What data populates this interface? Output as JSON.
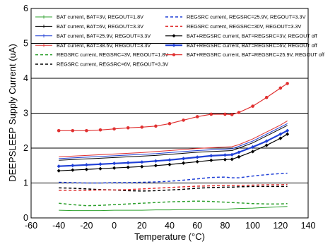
{
  "chart_data": {
    "type": "line",
    "title": "",
    "xlabel": "Temperature (°C)",
    "ylabel": "DEEPSLEEP Supply Current (uA)",
    "xlim": [
      -60,
      140
    ],
    "ylim": [
      0,
      6
    ],
    "x_ticks": [
      "-60",
      "-40",
      "-20",
      "0",
      "20",
      "40",
      "60",
      "80",
      "100",
      "120",
      "140"
    ],
    "y_ticks": [
      "0",
      "1",
      "2",
      "3",
      "4",
      "5",
      "6"
    ],
    "grid": true,
    "legend_position": "top",
    "x": [
      -40,
      -30,
      -20,
      -10,
      0,
      10,
      20,
      30,
      40,
      50,
      60,
      70,
      80,
      85,
      90,
      100,
      110,
      120,
      125
    ],
    "series": [
      {
        "name": "BAT current, BAT=3V, REGOUT=1.8V",
        "color": "#2ca02c",
        "style": "solid",
        "width": 1,
        "marker": "none",
        "values": [
          0.22,
          0.21,
          0.21,
          0.21,
          0.22,
          0.22,
          0.22,
          0.23,
          0.23,
          0.24,
          0.24,
          0.25,
          0.25,
          0.26,
          0.27,
          0.28,
          0.3,
          0.32,
          0.33
        ]
      },
      {
        "name": "BAT current, BAT=6V, REGOUT=3.3V",
        "color": "#000000",
        "style": "solid",
        "width": 1,
        "marker": "none",
        "values": [
          1.65,
          1.67,
          1.69,
          1.71,
          1.73,
          1.75,
          1.77,
          1.79,
          1.82,
          1.85,
          1.88,
          1.9,
          1.92,
          1.93,
          2.0,
          2.15,
          2.35,
          2.55,
          2.65
        ]
      },
      {
        "name": "BAT current, BAT=25.9V, REGOUT=3.3V",
        "color": "#1f3fd6",
        "style": "solid",
        "width": 1,
        "marker": "none",
        "values": [
          1.7,
          1.72,
          1.74,
          1.76,
          1.78,
          1.8,
          1.82,
          1.84,
          1.87,
          1.9,
          1.93,
          1.95,
          1.97,
          1.98,
          2.05,
          2.2,
          2.4,
          2.6,
          2.7
        ]
      },
      {
        "name": "BAT current, BAT=38.5V, REGOUT=3.3V",
        "color": "#e03030",
        "style": "solid",
        "width": 1,
        "marker": "none",
        "values": [
          1.75,
          1.77,
          1.79,
          1.81,
          1.83,
          1.85,
          1.87,
          1.9,
          1.93,
          1.96,
          1.99,
          2.01,
          2.03,
          2.04,
          2.1,
          2.26,
          2.46,
          2.66,
          2.78
        ]
      },
      {
        "name": "REGSRC current, REGSRC=3V, REGOUT=1.8V",
        "color": "#2ca02c",
        "style": "dashed",
        "width": 1.5,
        "marker": "none",
        "values": [
          0.42,
          0.38,
          0.35,
          0.36,
          0.38,
          0.4,
          0.42,
          0.44,
          0.46,
          0.47,
          0.48,
          0.47,
          0.45,
          0.44,
          0.43,
          0.41,
          0.4,
          0.4,
          0.41
        ]
      },
      {
        "name": "REGSRC current, REGSRC=6V, REGOUT=3.3V",
        "color": "#000000",
        "style": "dashed",
        "width": 1.5,
        "marker": "none",
        "values": [
          0.86,
          0.85,
          0.83,
          0.81,
          0.8,
          0.78,
          0.77,
          0.78,
          0.8,
          0.82,
          0.85,
          0.87,
          0.88,
          0.88,
          0.89,
          0.9,
          0.9,
          0.9,
          0.9
        ]
      },
      {
        "name": "REGSRC current, REGSRC=25.9V, REGOUT=3.3V",
        "color": "#1f3fd6",
        "style": "dashed",
        "width": 1.5,
        "marker": "none",
        "values": [
          1.02,
          1.01,
          1.0,
          1.0,
          1.01,
          1.01,
          1.02,
          1.03,
          1.05,
          1.08,
          1.12,
          1.16,
          1.17,
          1.15,
          1.15,
          1.2,
          1.24,
          1.27,
          1.28
        ]
      },
      {
        "name": "REGSRC current, REGSRC=30V, REGOUT=3.3V",
        "color": "#e03030",
        "style": "dashed",
        "width": 1.5,
        "marker": "none",
        "values": [
          0.79,
          0.79,
          0.79,
          0.8,
          0.8,
          0.81,
          0.83,
          0.85,
          0.87,
          0.89,
          0.91,
          0.92,
          0.93,
          0.93,
          0.93,
          0.94,
          0.95,
          0.95,
          0.96
        ]
      },
      {
        "name": "BAT+REGSRC current, BAT=REGSRC=3V, REGOUT off",
        "color": "#000000",
        "style": "solid",
        "width": 1.2,
        "marker": "diamond",
        "values": [
          1.35,
          1.37,
          1.39,
          1.41,
          1.43,
          1.45,
          1.47,
          1.5,
          1.53,
          1.57,
          1.61,
          1.65,
          1.67,
          1.68,
          1.75,
          1.9,
          2.08,
          2.28,
          2.4
        ]
      },
      {
        "name": "BAT+REGSRC current, BAT=REGSRC=6V, REGOUT off",
        "color": "#1f3fd6",
        "style": "solid",
        "width": 2.2,
        "marker": "diamond",
        "values": [
          1.48,
          1.5,
          1.52,
          1.54,
          1.56,
          1.58,
          1.6,
          1.63,
          1.66,
          1.7,
          1.74,
          1.78,
          1.8,
          1.81,
          1.88,
          2.03,
          2.2,
          2.4,
          2.5
        ]
      },
      {
        "name": "BAT+REGSRC current, BAT=REGSRC=25.9V, REGOUT off",
        "color": "#e03030",
        "style": "solid",
        "width": 1.2,
        "marker": "dot",
        "values": [
          2.5,
          2.5,
          2.5,
          2.52,
          2.55,
          2.58,
          2.6,
          2.63,
          2.7,
          2.8,
          2.9,
          2.97,
          2.97,
          2.96,
          3.02,
          3.2,
          3.45,
          3.72,
          3.85
        ]
      }
    ]
  }
}
